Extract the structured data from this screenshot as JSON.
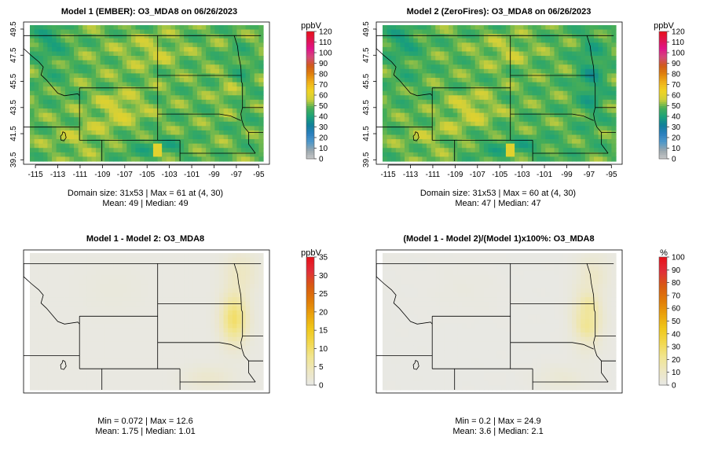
{
  "chart_data": [
    {
      "type": "heatmap",
      "title": "Model 1 (EMBER): O3_MDA8 on 06/26/2023",
      "x_ticks": [
        "-115",
        "-113",
        "-111",
        "-109",
        "-107",
        "-105",
        "-103",
        "-101",
        "-99",
        "-97",
        "-95"
      ],
      "y_ticks": [
        "39.5",
        "41.5",
        "43.5",
        "45.5",
        "47.5",
        "49.5"
      ],
      "xlim": [
        -115.5,
        -94.6
      ],
      "ylim": [
        39.4,
        49.8
      ],
      "grid": [
        31,
        53
      ],
      "legend_unit": "ppbV",
      "legend_ticks": [
        "0",
        "10",
        "20",
        "30",
        "40",
        "50",
        "60",
        "70",
        "80",
        "90",
        "100",
        "110",
        "120"
      ],
      "zlim": [
        0,
        120
      ],
      "palette": "ozone",
      "field": "m1",
      "stats_lines": [
        "Domain size: 31x53 | Max = 61 at (4, 30)",
        "Mean: 49 |  Median: 49"
      ]
    },
    {
      "type": "heatmap",
      "title": "Model 2 (ZeroFires): O3_MDA8 on 06/26/2023",
      "x_ticks": [
        "-115",
        "-113",
        "-111",
        "-109",
        "-107",
        "-105",
        "-103",
        "-101",
        "-99",
        "-97",
        "-95"
      ],
      "y_ticks": [
        "39.5",
        "41.5",
        "43.5",
        "45.5",
        "47.5",
        "49.5"
      ],
      "xlim": [
        -115.5,
        -94.6
      ],
      "ylim": [
        39.4,
        49.8
      ],
      "grid": [
        31,
        53
      ],
      "legend_unit": "ppbV",
      "legend_ticks": [
        "0",
        "10",
        "20",
        "30",
        "40",
        "50",
        "60",
        "70",
        "80",
        "90",
        "100",
        "110",
        "120"
      ],
      "zlim": [
        0,
        120
      ],
      "palette": "ozone",
      "field": "m2",
      "stats_lines": [
        "Domain size: 31x53 | Max = 60 at (4, 30)",
        "Mean: 47 |  Median: 47"
      ]
    },
    {
      "type": "heatmap",
      "title": "Model 1 - Model 2: O3_MDA8",
      "x_ticks": [],
      "y_ticks": [],
      "xlim": [
        -115.5,
        -94.6
      ],
      "ylim": [
        39.4,
        49.8
      ],
      "grid": [
        31,
        53
      ],
      "legend_unit": "ppbV",
      "legend_ticks": [
        "0",
        "5",
        "10",
        "15",
        "20",
        "25",
        "30",
        "35"
      ],
      "zlim": [
        0,
        35
      ],
      "palette": "diff",
      "field": "diff",
      "stats_lines": [
        "Min = 0.072 | Max = 12.6",
        "Mean: 1.75 |  Median: 1.01"
      ]
    },
    {
      "type": "heatmap",
      "title": "(Model 1 - Model 2)/(Model 1)x100%: O3_MDA8",
      "x_ticks": [],
      "y_ticks": [],
      "xlim": [
        -115.5,
        -94.6
      ],
      "ylim": [
        39.4,
        49.8
      ],
      "grid": [
        31,
        53
      ],
      "legend_unit": "%",
      "legend_ticks": [
        "0",
        "10",
        "20",
        "30",
        "40",
        "50",
        "60",
        "70",
        "80",
        "90",
        "100"
      ],
      "zlim": [
        0,
        100
      ],
      "palette": "diff",
      "field": "pct",
      "stats_lines": [
        "Min = 0.2 | Max = 24.9",
        "Mean: 3.6 |  Median: 2.1"
      ]
    }
  ],
  "colors": {
    "frame": "#000000",
    "ozone_palette": [
      "#c8c8c8",
      "#9aa7ad",
      "#4f98c9",
      "#2a7fbd",
      "#117f9a",
      "#1aa17a",
      "#46ad58",
      "#cfcf3a",
      "#f0d424",
      "#f0b21a",
      "#e0820c",
      "#cf5a1a",
      "#d4497a",
      "#e0148a",
      "#e01450",
      "#e8101a"
    ],
    "diff_palette": [
      "#e8e8e6",
      "#ede7c2",
      "#f1e590",
      "#f2d84e",
      "#f0c71a",
      "#eaa20c",
      "#e07a08",
      "#d85a12",
      "#e0303a",
      "#e8101a"
    ]
  }
}
